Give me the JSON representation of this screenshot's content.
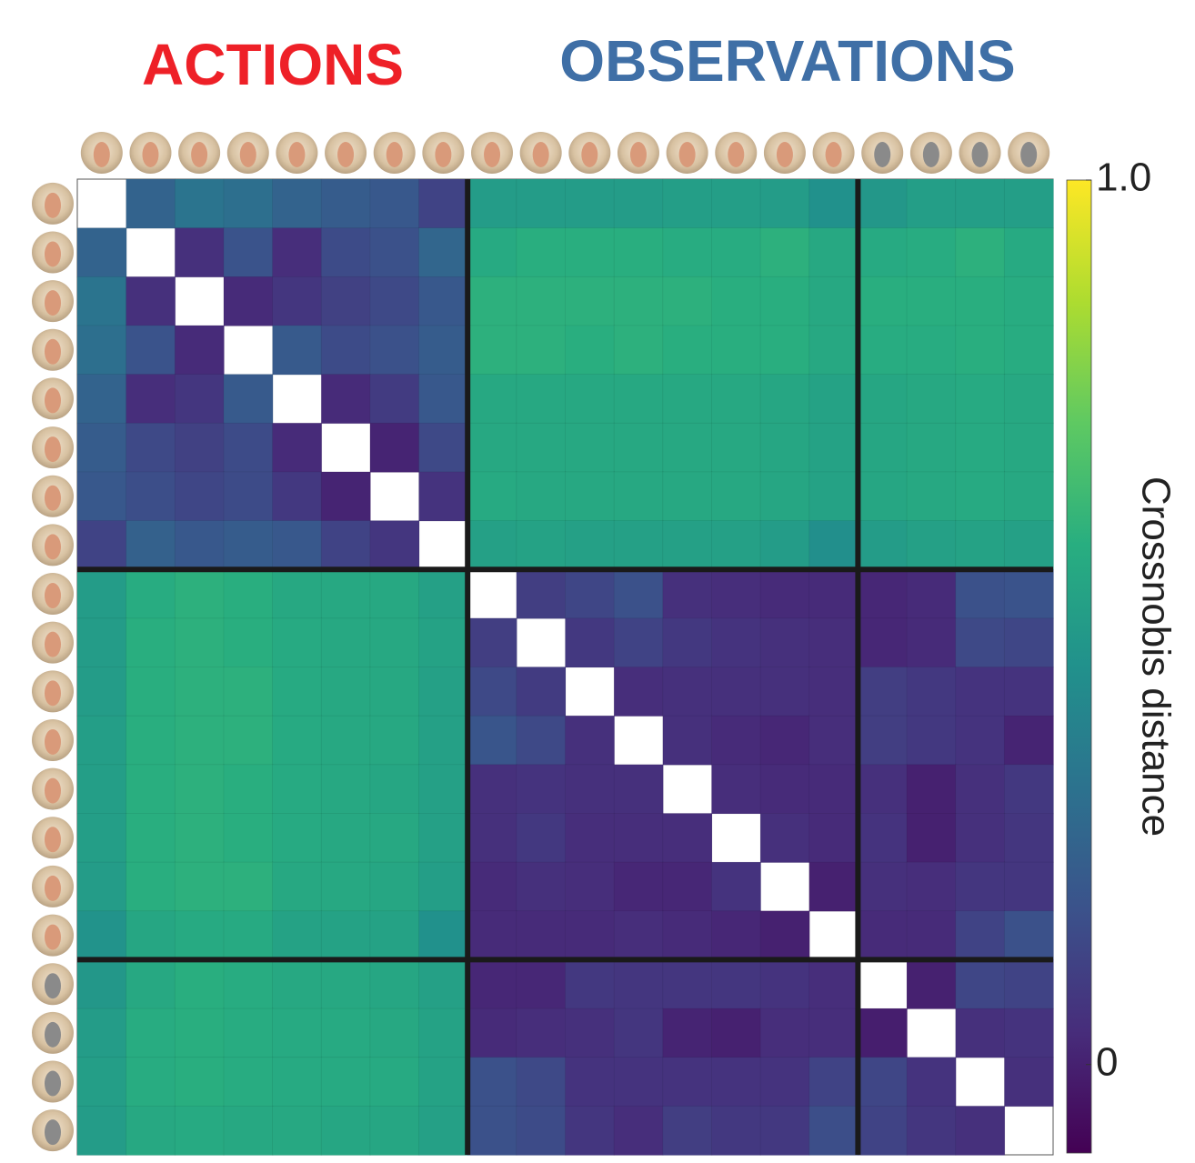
{
  "chart_data": {
    "type": "heatmap",
    "group_labels": [
      {
        "text": "ACTIONS",
        "color": "#ee2027"
      },
      {
        "text": "OBSERVATIONS",
        "color": "#3f6fa6"
      }
    ],
    "colorbar_label": "Crossnobis distance",
    "colormap": "viridis",
    "zlim": [
      -0.1,
      1.0
    ],
    "zticks": [
      {
        "value": 1.0,
        "label": "1.0"
      },
      0
    ],
    "x_categories": [
      null,
      null,
      null,
      null,
      null,
      null,
      null,
      null,
      null,
      null,
      null,
      null,
      null,
      null,
      null,
      null,
      null,
      null,
      null,
      null
    ],
    "y_categories": [
      null,
      null,
      null,
      null,
      null,
      null,
      null,
      null,
      null,
      null,
      null,
      null,
      null,
      null,
      null,
      null,
      null,
      null,
      null,
      null
    ],
    "values": [
      [
        null,
        0.25,
        0.32,
        0.3,
        0.25,
        0.22,
        0.2,
        0.12,
        0.5,
        0.5,
        0.5,
        0.5,
        0.51,
        0.51,
        0.5,
        0.45,
        0.48,
        0.51,
        0.51,
        0.51
      ],
      [
        0.25,
        null,
        0.05,
        0.18,
        0.04,
        0.15,
        0.17,
        0.26,
        0.57,
        0.59,
        0.59,
        0.59,
        0.58,
        0.58,
        0.6,
        0.56,
        0.57,
        0.58,
        0.6,
        0.57
      ],
      [
        0.32,
        0.05,
        null,
        0.03,
        0.07,
        0.11,
        0.14,
        0.2,
        0.6,
        0.6,
        0.6,
        0.6,
        0.6,
        0.59,
        0.59,
        0.56,
        0.59,
        0.59,
        0.59,
        0.58
      ],
      [
        0.3,
        0.18,
        0.03,
        null,
        0.21,
        0.15,
        0.17,
        0.22,
        0.6,
        0.6,
        0.59,
        0.6,
        0.59,
        0.59,
        0.59,
        0.56,
        0.58,
        0.58,
        0.59,
        0.58
      ],
      [
        0.25,
        0.04,
        0.07,
        0.21,
        null,
        0.03,
        0.09,
        0.2,
        0.56,
        0.56,
        0.56,
        0.56,
        0.56,
        0.56,
        0.55,
        0.53,
        0.55,
        0.56,
        0.57,
        0.56
      ],
      [
        0.22,
        0.14,
        0.11,
        0.15,
        0.03,
        null,
        0.01,
        0.14,
        0.56,
        0.56,
        0.56,
        0.56,
        0.56,
        0.56,
        0.55,
        0.53,
        0.55,
        0.56,
        0.57,
        0.56
      ],
      [
        0.2,
        0.16,
        0.13,
        0.15,
        0.08,
        0.01,
        null,
        0.06,
        0.57,
        0.56,
        0.56,
        0.56,
        0.56,
        0.56,
        0.55,
        0.53,
        0.55,
        0.56,
        0.57,
        0.56
      ],
      [
        0.12,
        0.24,
        0.2,
        0.22,
        0.2,
        0.12,
        0.07,
        null,
        0.52,
        0.53,
        0.52,
        0.52,
        0.52,
        0.52,
        0.5,
        0.44,
        0.5,
        0.52,
        0.53,
        0.52
      ],
      [
        0.5,
        0.58,
        0.6,
        0.59,
        0.56,
        0.56,
        0.56,
        0.52,
        null,
        0.1,
        0.13,
        0.17,
        0.05,
        0.04,
        0.03,
        0.03,
        0.02,
        0.03,
        0.17,
        0.18
      ],
      [
        0.5,
        0.59,
        0.6,
        0.59,
        0.57,
        0.56,
        0.56,
        0.53,
        0.1,
        null,
        0.08,
        0.12,
        0.08,
        0.06,
        0.05,
        0.04,
        0.02,
        0.03,
        0.14,
        0.13
      ],
      [
        0.5,
        0.59,
        0.6,
        0.6,
        0.57,
        0.56,
        0.56,
        0.52,
        0.14,
        0.09,
        null,
        0.04,
        0.05,
        0.05,
        0.05,
        0.04,
        0.1,
        0.08,
        0.06,
        0.06
      ],
      [
        0.51,
        0.59,
        0.6,
        0.6,
        0.57,
        0.56,
        0.56,
        0.52,
        0.19,
        0.14,
        0.05,
        null,
        0.05,
        0.03,
        0.02,
        0.04,
        0.1,
        0.08,
        0.06,
        0.01
      ],
      [
        0.51,
        0.59,
        0.6,
        0.59,
        0.57,
        0.56,
        0.55,
        0.52,
        0.05,
        0.06,
        0.05,
        0.05,
        null,
        0.04,
        0.03,
        0.03,
        0.05,
        0.0,
        0.05,
        0.08
      ],
      [
        0.51,
        0.59,
        0.6,
        0.59,
        0.57,
        0.56,
        0.56,
        0.52,
        0.05,
        0.08,
        0.04,
        0.04,
        0.04,
        null,
        0.05,
        0.03,
        0.06,
        0.0,
        0.05,
        0.07
      ],
      [
        0.5,
        0.59,
        0.6,
        0.6,
        0.56,
        0.56,
        0.55,
        0.51,
        0.03,
        0.05,
        0.04,
        0.02,
        0.02,
        0.06,
        null,
        0.0,
        0.05,
        0.04,
        0.07,
        0.07
      ],
      [
        0.46,
        0.55,
        0.57,
        0.57,
        0.53,
        0.53,
        0.53,
        0.45,
        0.03,
        0.03,
        0.03,
        0.04,
        0.03,
        0.02,
        0.0,
        null,
        0.03,
        0.03,
        0.12,
        0.17
      ],
      [
        0.48,
        0.56,
        0.59,
        0.58,
        0.56,
        0.56,
        0.55,
        0.52,
        0.02,
        0.02,
        0.08,
        0.07,
        0.07,
        0.07,
        0.06,
        0.04,
        null,
        0.0,
        0.13,
        0.12
      ],
      [
        0.5,
        0.58,
        0.59,
        0.58,
        0.57,
        0.57,
        0.56,
        0.53,
        0.03,
        0.04,
        0.05,
        0.07,
        0.01,
        0.0,
        0.04,
        0.04,
        -0.01,
        null,
        0.05,
        0.06
      ],
      [
        0.51,
        0.58,
        0.59,
        0.58,
        0.57,
        0.57,
        0.57,
        0.53,
        0.17,
        0.14,
        0.06,
        0.06,
        0.06,
        0.06,
        0.06,
        0.12,
        0.13,
        0.06,
        null,
        0.05
      ],
      [
        0.5,
        0.56,
        0.57,
        0.56,
        0.56,
        0.55,
        0.55,
        0.52,
        0.17,
        0.15,
        0.07,
        0.04,
        0.1,
        0.08,
        0.08,
        0.16,
        0.12,
        0.07,
        0.05,
        null
      ]
    ]
  }
}
